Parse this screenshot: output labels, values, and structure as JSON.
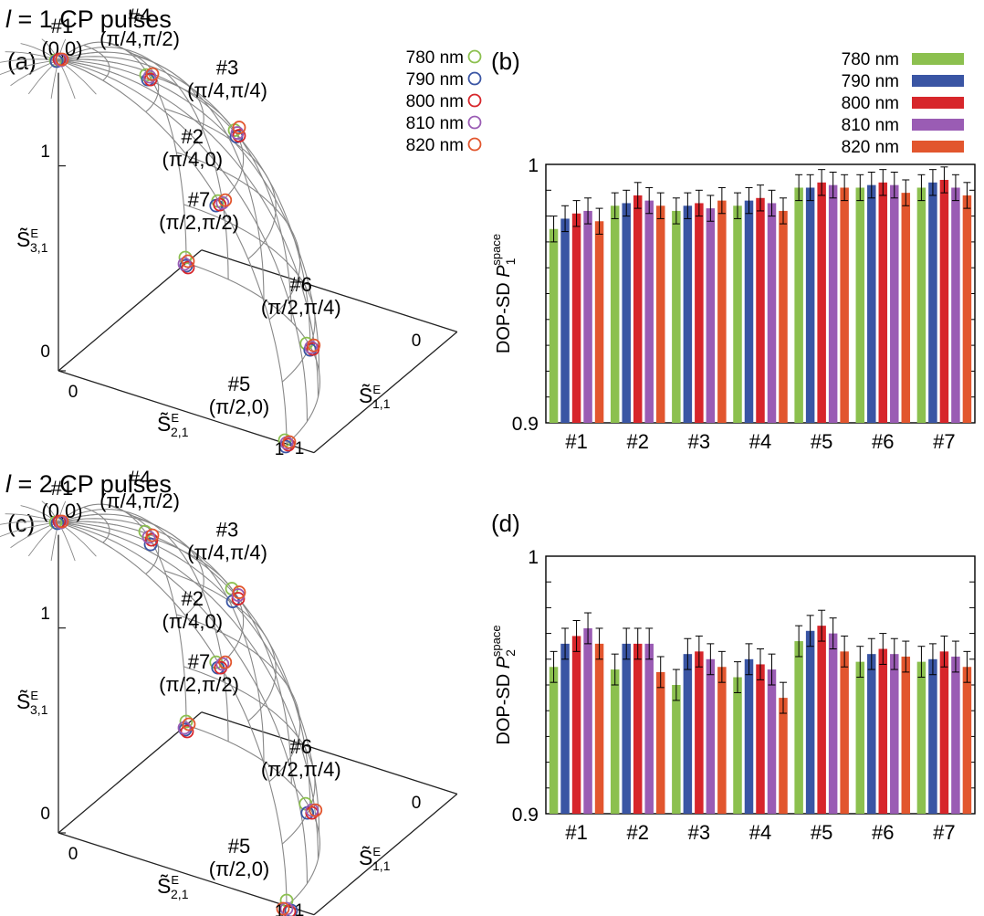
{
  "colors": {
    "780 nm": "#8cc04f",
    "790 nm": "#3a55a4",
    "800 nm": "#d7262b",
    "810 nm": "#9a5cb4",
    "820 nm": "#e2562e"
  },
  "wavelengths": [
    "780 nm",
    "790 nm",
    "800 nm",
    "810 nm",
    "820 nm"
  ],
  "sphere_label_text": [
    "#1",
    "(0,0)",
    "#2",
    "(π/4,0)",
    "#3",
    "(π/4,π/4)",
    "#4",
    "(π/4,π/2)",
    "#5",
    "(π/2,0)",
    "#6",
    "(π/2,π/4)",
    "#7",
    "(π/2,π/2)"
  ],
  "panel_a": {
    "heading_italic": "l",
    "heading_rest": " = 1 CP pulses",
    "label": "(a)",
    "axis_s3": "S̃",
    "axis_s3_sup": "E",
    "axis_s3_sub": "3,1",
    "axis_s2": "S̃",
    "axis_s2_sup": "E",
    "axis_s2_sub": "2,1",
    "axis_s1": "S̃",
    "axis_s1_sup": "E",
    "axis_s1_sub": "1,1",
    "tick_one_z": "1",
    "tick_zero_z": "0",
    "tick_zero_x": "0",
    "tick_one_x": "1",
    "tick_zero_y": "0",
    "tick_one_y": "1"
  },
  "panel_c": {
    "heading_italic": "l",
    "heading_rest": " = 2 CP pulses",
    "label": "(c)"
  },
  "chart_data": [
    {
      "panel": "(b)",
      "type": "bar",
      "ylabel": "DOP-SD P",
      "ylabel_sub": "1",
      "ylabel_sup": "space",
      "ylim": [
        0.9,
        1.0
      ],
      "yticks": [
        "0.9",
        "1"
      ],
      "categories": [
        "#1",
        "#2",
        "#3",
        "#4",
        "#5",
        "#6",
        "#7"
      ],
      "legend": "top-right",
      "series": [
        {
          "name": "780 nm",
          "values": [
            0.975,
            0.984,
            0.982,
            0.984,
            0.991,
            0.991,
            0.991
          ],
          "errors": [
            0.005,
            0.005,
            0.005,
            0.005,
            0.005,
            0.005,
            0.005
          ]
        },
        {
          "name": "790 nm",
          "values": [
            0.979,
            0.985,
            0.984,
            0.986,
            0.991,
            0.992,
            0.993
          ],
          "errors": [
            0.005,
            0.005,
            0.005,
            0.005,
            0.005,
            0.005,
            0.005
          ]
        },
        {
          "name": "800 nm",
          "values": [
            0.981,
            0.988,
            0.985,
            0.987,
            0.993,
            0.993,
            0.994
          ],
          "errors": [
            0.005,
            0.005,
            0.005,
            0.005,
            0.005,
            0.005,
            0.005
          ]
        },
        {
          "name": "810 nm",
          "values": [
            0.982,
            0.986,
            0.983,
            0.985,
            0.992,
            0.992,
            0.991
          ],
          "errors": [
            0.005,
            0.005,
            0.005,
            0.005,
            0.005,
            0.005,
            0.005
          ]
        },
        {
          "name": "820 nm",
          "values": [
            0.978,
            0.984,
            0.986,
            0.982,
            0.991,
            0.989,
            0.988
          ],
          "errors": [
            0.005,
            0.005,
            0.005,
            0.005,
            0.005,
            0.005,
            0.005
          ]
        }
      ]
    },
    {
      "panel": "(d)",
      "type": "bar",
      "ylabel": "DOP-SD P",
      "ylabel_sub": "2",
      "ylabel_sup": "space",
      "ylim": [
        0.9,
        1.0
      ],
      "yticks": [
        "0.9",
        "1"
      ],
      "categories": [
        "#1",
        "#2",
        "#3",
        "#4",
        "#5",
        "#6",
        "#7"
      ],
      "series": [
        {
          "name": "780 nm",
          "values": [
            0.957,
            0.956,
            0.95,
            0.953,
            0.967,
            0.959,
            0.959
          ],
          "errors": [
            0.006,
            0.006,
            0.006,
            0.006,
            0.006,
            0.006,
            0.006
          ]
        },
        {
          "name": "790 nm",
          "values": [
            0.966,
            0.966,
            0.962,
            0.96,
            0.971,
            0.962,
            0.96
          ],
          "errors": [
            0.006,
            0.006,
            0.006,
            0.006,
            0.006,
            0.006,
            0.006
          ]
        },
        {
          "name": "800 nm",
          "values": [
            0.969,
            0.966,
            0.963,
            0.958,
            0.973,
            0.964,
            0.963
          ],
          "errors": [
            0.006,
            0.006,
            0.006,
            0.006,
            0.006,
            0.006,
            0.006
          ]
        },
        {
          "name": "810 nm",
          "values": [
            0.972,
            0.966,
            0.96,
            0.956,
            0.97,
            0.962,
            0.961
          ],
          "errors": [
            0.006,
            0.006,
            0.006,
            0.006,
            0.006,
            0.006,
            0.006
          ]
        },
        {
          "name": "820 nm",
          "values": [
            0.966,
            0.955,
            0.957,
            0.945,
            0.963,
            0.961,
            0.957
          ],
          "errors": [
            0.006,
            0.006,
            0.006,
            0.006,
            0.006,
            0.006,
            0.006
          ]
        }
      ]
    }
  ]
}
